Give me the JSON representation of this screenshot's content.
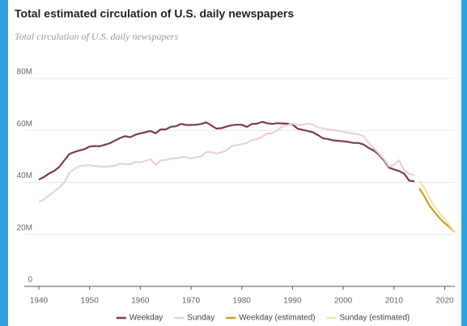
{
  "chart_data": {
    "type": "line",
    "title": "Total estimated circulation of U.S. daily newspapers",
    "subtitle": "Total circulation of U.S. daily newspapers",
    "x": [
      1940,
      1941,
      1942,
      1943,
      1944,
      1945,
      1946,
      1947,
      1948,
      1949,
      1950,
      1951,
      1952,
      1953,
      1954,
      1955,
      1956,
      1957,
      1958,
      1959,
      1960,
      1961,
      1962,
      1963,
      1964,
      1965,
      1966,
      1967,
      1968,
      1969,
      1970,
      1971,
      1972,
      1973,
      1974,
      1975,
      1976,
      1977,
      1978,
      1979,
      1980,
      1981,
      1982,
      1983,
      1984,
      1985,
      1986,
      1987,
      1988,
      1989,
      1990,
      1991,
      1992,
      1993,
      1994,
      1995,
      1996,
      1997,
      1998,
      1999,
      2000,
      2001,
      2002,
      2003,
      2004,
      2005,
      2006,
      2007,
      2008,
      2009,
      2010,
      2011,
      2012,
      2013,
      2014,
      2015,
      2016,
      2017,
      2018,
      2019,
      2020,
      2021,
      2022
    ],
    "xlim": [
      1940,
      2022
    ],
    "xticks": [
      1940,
      1950,
      1960,
      1970,
      1980,
      1990,
      2000,
      2010,
      2020
    ],
    "ylim": [
      0,
      80000000
    ],
    "yticks": [
      0,
      {
        "value": 20000000,
        "label": "20M"
      },
      {
        "value": 40000000,
        "label": "40M"
      },
      {
        "value": 60000000,
        "label": "60M"
      },
      {
        "value": 80000000,
        "label": "80M"
      }
    ],
    "grid": true,
    "legend": "bottom",
    "series": [
      {
        "name": "Weekday",
        "color": "#7b3c4e",
        "values": [
          41100000,
          42100000,
          43400000,
          44400000,
          45900000,
          48400000,
          50900000,
          51700000,
          52300000,
          52800000,
          53800000,
          54000000,
          53900000,
          54500000,
          55100000,
          56100000,
          57100000,
          57800000,
          57400000,
          58300000,
          58900000,
          59300000,
          59800000,
          58900000,
          60400000,
          60400000,
          61400000,
          61600000,
          62500000,
          62100000,
          62100000,
          62200000,
          62500000,
          63100000,
          61900000,
          60700000,
          60900000,
          61500000,
          62000000,
          62200000,
          62200000,
          61400000,
          62500000,
          62600000,
          63300000,
          62800000,
          62500000,
          62800000,
          62700000,
          62600000,
          62300000,
          60700000,
          60200000,
          59800000,
          59300000,
          58200000,
          57000000,
          56700000,
          56200000,
          56000000,
          55800000,
          55600000,
          55200000,
          55200000,
          54600000,
          53300000,
          52300000,
          50700000,
          48600000,
          45700000,
          45000000,
          44400000,
          43400000,
          40700000,
          40400000,
          null,
          null,
          null,
          null,
          null,
          null,
          null,
          null
        ]
      },
      {
        "name": "Sunday",
        "color": "#ecd0d8",
        "values": [
          32400000,
          33400000,
          35000000,
          36500000,
          38000000,
          39900000,
          43700000,
          45200000,
          46300000,
          46500000,
          46600000,
          46300000,
          46200000,
          46000000,
          46200000,
          46400000,
          47200000,
          47000000,
          47000000,
          47800000,
          47700000,
          48200000,
          49000000,
          46800000,
          48400000,
          48600000,
          49200000,
          49200000,
          49700000,
          49700000,
          49200000,
          49700000,
          50000000,
          51700000,
          51700000,
          51100000,
          51600000,
          52400000,
          53900000,
          54400000,
          54700000,
          55200000,
          56300000,
          56700000,
          57500000,
          58800000,
          58900000,
          60100000,
          61500000,
          62000000,
          62600000,
          62100000,
          62200000,
          62600000,
          62300000,
          61200000,
          60800000,
          60500000,
          60100000,
          59900000,
          59400000,
          59100000,
          58800000,
          58500000,
          57800000,
          55300000,
          53200000,
          51200000,
          49100000,
          46200000,
          46700000,
          48500000,
          44800000,
          43300000,
          42800000,
          null,
          null,
          null,
          null,
          null,
          null,
          null,
          null
        ]
      },
      {
        "name": "Weekday (estimated)",
        "color": "#c9a227",
        "values": [
          null,
          null,
          null,
          null,
          null,
          null,
          null,
          null,
          null,
          null,
          null,
          null,
          null,
          null,
          null,
          null,
          null,
          null,
          null,
          null,
          null,
          null,
          null,
          null,
          null,
          null,
          null,
          null,
          null,
          null,
          null,
          null,
          null,
          null,
          null,
          null,
          null,
          null,
          null,
          null,
          null,
          null,
          null,
          null,
          null,
          null,
          null,
          null,
          null,
          null,
          null,
          null,
          null,
          null,
          null,
          null,
          null,
          null,
          null,
          null,
          null,
          null,
          null,
          null,
          null,
          null,
          null,
          null,
          null,
          null,
          null,
          null,
          null,
          null,
          null,
          37700000,
          34700000,
          31000000,
          28600000,
          26200000,
          24300000,
          22700000,
          20900000
        ]
      },
      {
        "name": "Sunday (estimated)",
        "color": "#f3e6b0",
        "values": [
          null,
          null,
          null,
          null,
          null,
          null,
          null,
          null,
          null,
          null,
          null,
          null,
          null,
          null,
          null,
          null,
          null,
          null,
          null,
          null,
          null,
          null,
          null,
          null,
          null,
          null,
          null,
          null,
          null,
          null,
          null,
          null,
          null,
          null,
          null,
          null,
          null,
          null,
          null,
          null,
          null,
          null,
          null,
          null,
          null,
          null,
          null,
          null,
          null,
          null,
          null,
          null,
          null,
          null,
          null,
          null,
          null,
          null,
          null,
          null,
          null,
          null,
          null,
          null,
          null,
          null,
          null,
          null,
          null,
          null,
          null,
          null,
          null,
          null,
          null,
          40700000,
          37800000,
          34000000,
          30800000,
          28200000,
          25800000,
          23400000,
          21000000
        ]
      }
    ]
  }
}
